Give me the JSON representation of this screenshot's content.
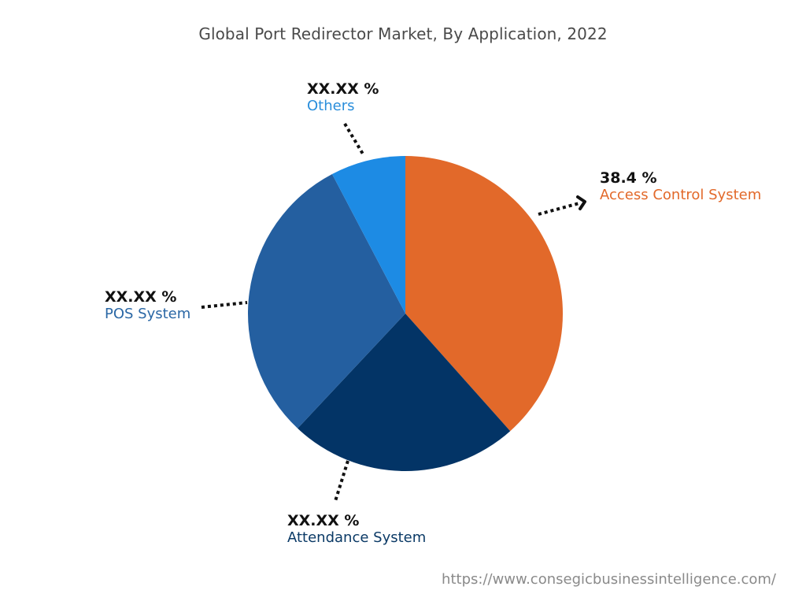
{
  "chart_data": {
    "type": "pie",
    "title": "Global Port Redirector Market, By Application, 2022",
    "start_angle_deg": 0,
    "direction": "clockwise",
    "slices": [
      {
        "label": "Access Control System",
        "value": 38.4,
        "display": "38.4 %",
        "color": "#E2692A",
        "text_color": "#E2692A"
      },
      {
        "label": "Attendance System",
        "value": 23.6,
        "display": "XX.XX %",
        "color": "#033466",
        "text_color": "#0B3A66"
      },
      {
        "label": "POS System",
        "value": 30.3,
        "display": "XX.XX %",
        "color": "#245FA0",
        "text_color": "#2A67A5"
      },
      {
        "label": "Others",
        "value": 7.7,
        "display": "XX.XX %",
        "color": "#1D8BE4",
        "text_color": "#2A8EDB"
      }
    ],
    "center": [
      515,
      398
    ],
    "radius": 200,
    "legend": "none (callout labels)"
  },
  "labels": {
    "access_control": {
      "pct": "38.4 %",
      "name": "Access Control System"
    },
    "attendance": {
      "pct": "XX.XX %",
      "name": "Attendance System"
    },
    "pos": {
      "pct": "XX.XX %",
      "name": "POS System"
    },
    "others": {
      "pct": "XX.XX %",
      "name": "Others"
    }
  },
  "footer": {
    "source_url": "https://www.consegicbusinessintelligence.com/"
  }
}
